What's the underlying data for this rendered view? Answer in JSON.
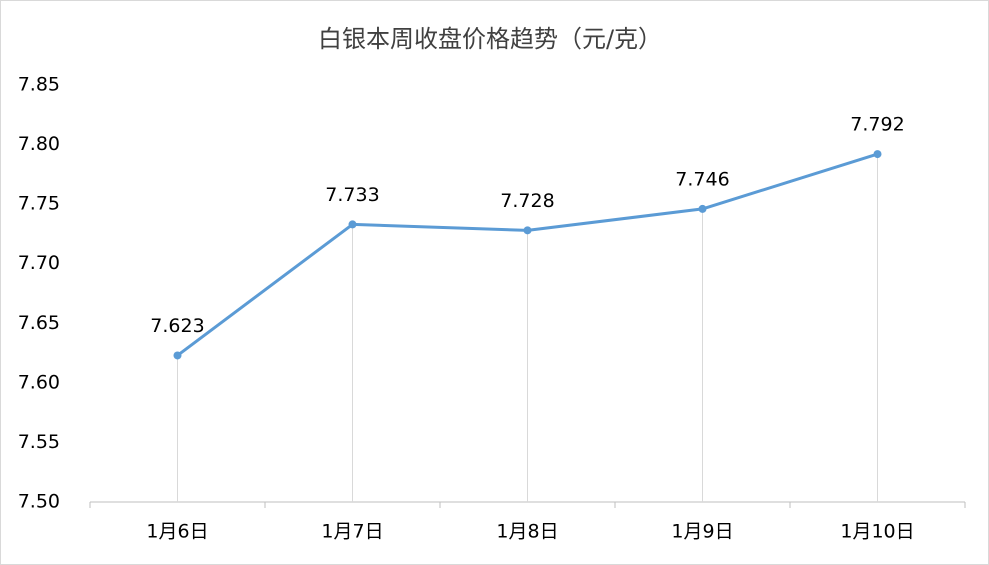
{
  "chart_data": {
    "type": "line",
    "title": "白银本周收盘价格趋势（元/克）",
    "categories": [
      "1月6日",
      "1月7日",
      "1月8日",
      "1月9日",
      "1月10日"
    ],
    "values": [
      7.623,
      7.733,
      7.728,
      7.746,
      7.792
    ],
    "color": "#5b9bd5",
    "ylim": [
      7.5,
      7.85
    ],
    "yticks": [
      {
        "value": 7.5,
        "label": "7.50"
      },
      {
        "value": 7.55,
        "label": "7.55"
      },
      {
        "value": 7.6,
        "label": "7.60"
      },
      {
        "value": 7.65,
        "label": "7.65"
      },
      {
        "value": 7.7,
        "label": "7.70"
      },
      {
        "value": 7.75,
        "label": "7.75"
      },
      {
        "value": 7.8,
        "label": "7.80"
      },
      {
        "value": 7.85,
        "label": "7.85"
      }
    ],
    "drop_lines": true
  }
}
